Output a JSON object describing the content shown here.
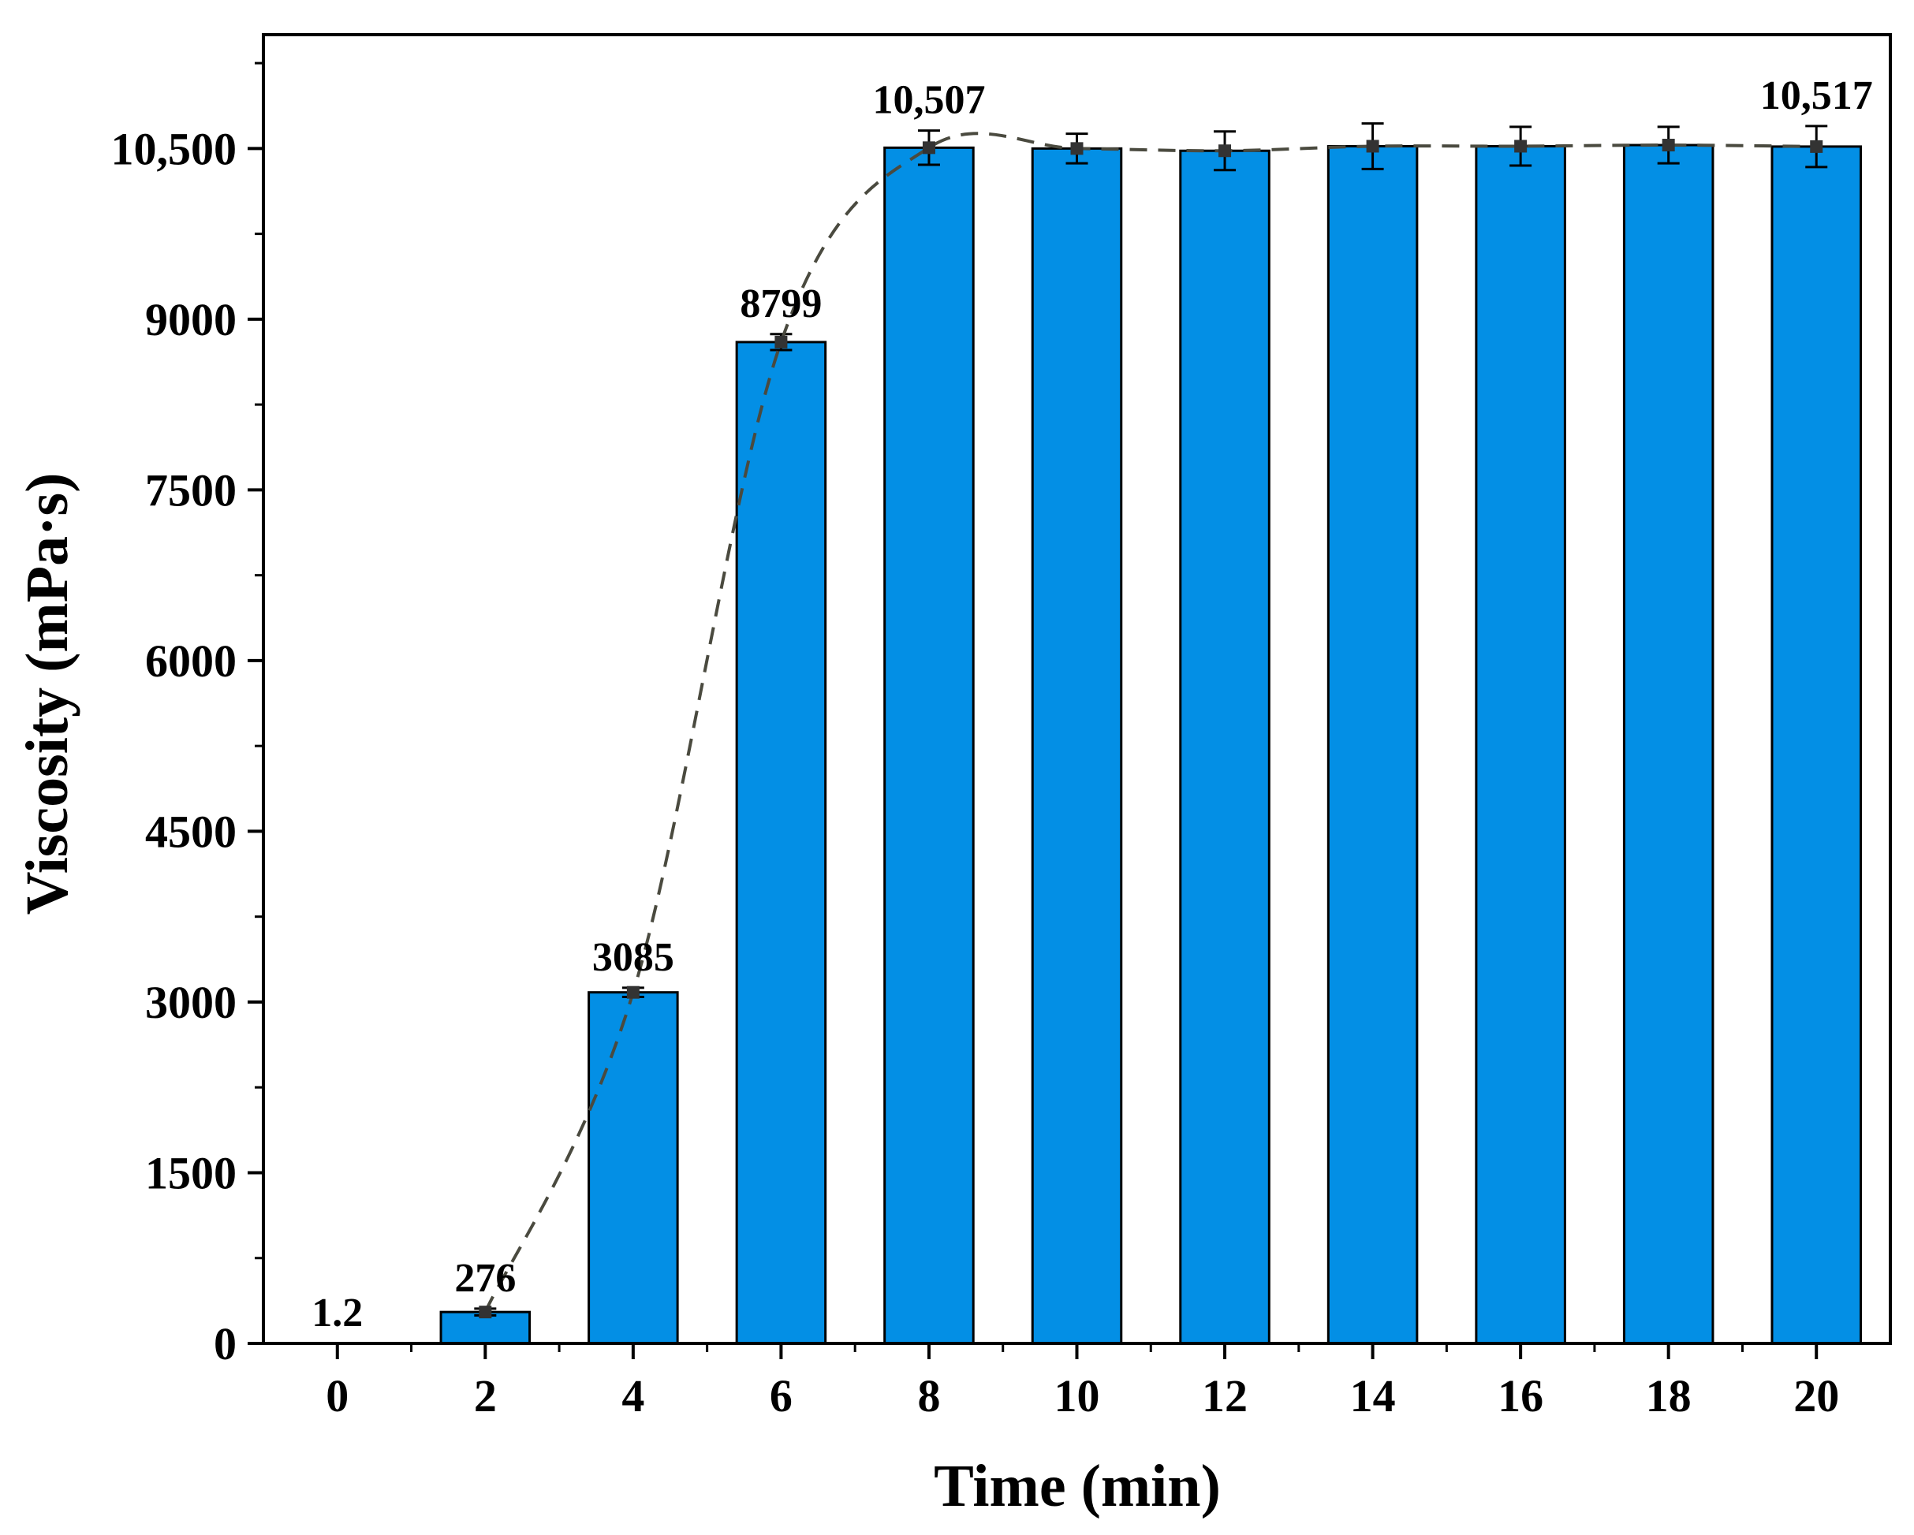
{
  "chart_data": {
    "type": "bar",
    "title": "",
    "xlabel": "Time (min)",
    "ylabel": "Viscosity (mPa·s)",
    "categories": [
      "0",
      "2",
      "4",
      "6",
      "8",
      "10",
      "12",
      "14",
      "16",
      "18",
      "20"
    ],
    "x": [
      0,
      2,
      4,
      6,
      8,
      10,
      12,
      14,
      16,
      18,
      20
    ],
    "values": [
      1.2,
      276,
      3085,
      8799,
      10507,
      10500,
      10480,
      10520,
      10520,
      10530,
      10517
    ],
    "errors": [
      0,
      30,
      40,
      70,
      150,
      130,
      170,
      200,
      170,
      160,
      180
    ],
    "yticks": [
      0,
      1500,
      3000,
      4500,
      6000,
      7500,
      9000,
      10500
    ],
    "ytick_labels": [
      "0",
      "1500",
      "3000",
      "4500",
      "6000",
      "7500",
      "9000",
      "10,500"
    ],
    "ylim": [
      0,
      11500
    ],
    "xlim": [
      -1,
      21
    ],
    "data_labels": [
      {
        "x": 0,
        "text": "1.2"
      },
      {
        "x": 2,
        "text": "276"
      },
      {
        "x": 4,
        "text": "3085"
      },
      {
        "x": 6,
        "text": "8799"
      },
      {
        "x": 8,
        "text": "10,507"
      },
      {
        "x": 20,
        "text": "10,517"
      }
    ],
    "bar_color": "#038fe5",
    "trend_line": {
      "style": "dashed",
      "color": "#4a4a3f",
      "points_from": "values"
    },
    "grid": false
  }
}
